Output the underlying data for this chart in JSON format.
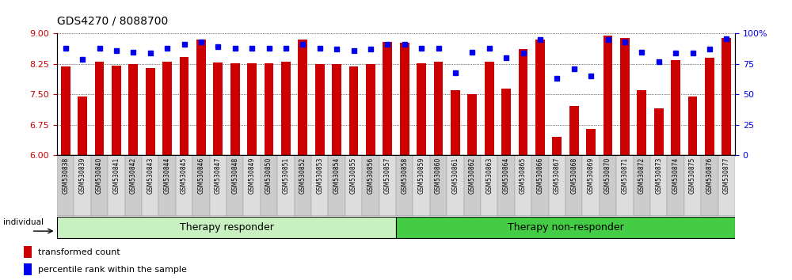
{
  "title": "GDS4270 / 8088700",
  "samples": [
    "GSM530838",
    "GSM530839",
    "GSM530840",
    "GSM530841",
    "GSM530842",
    "GSM530843",
    "GSM530844",
    "GSM530845",
    "GSM530846",
    "GSM530847",
    "GSM530848",
    "GSM530849",
    "GSM530850",
    "GSM530851",
    "GSM530852",
    "GSM530853",
    "GSM530854",
    "GSM530855",
    "GSM530856",
    "GSM530857",
    "GSM530858",
    "GSM530859",
    "GSM530860",
    "GSM530861",
    "GSM530862",
    "GSM530863",
    "GSM530864",
    "GSM530865",
    "GSM530866",
    "GSM530867",
    "GSM530868",
    "GSM530869",
    "GSM530870",
    "GSM530871",
    "GSM530872",
    "GSM530873",
    "GSM530874",
    "GSM530875",
    "GSM530876",
    "GSM530877"
  ],
  "bar_values": [
    8.19,
    7.45,
    8.3,
    8.22,
    8.24,
    8.16,
    8.3,
    8.42,
    8.85,
    8.28,
    8.27,
    8.27,
    8.26,
    8.3,
    8.85,
    8.25,
    8.24,
    8.19,
    8.25,
    8.8,
    8.78,
    8.26,
    8.3,
    7.6,
    7.5,
    8.3,
    7.65,
    8.62,
    8.85,
    6.45,
    7.22,
    6.65,
    8.95,
    8.9,
    7.6,
    7.15,
    8.35,
    7.45,
    8.4,
    8.9
  ],
  "percentile_values": [
    88,
    79,
    88,
    86,
    85,
    84,
    88,
    91,
    93,
    89,
    88,
    88,
    88,
    88,
    91,
    88,
    87,
    86,
    87,
    91,
    91,
    88,
    88,
    68,
    85,
    88,
    80,
    84,
    95,
    63,
    71,
    65,
    95,
    93,
    85,
    77,
    84,
    84,
    87,
    96
  ],
  "groups": [
    {
      "label": "Therapy responder",
      "start": 0,
      "end": 19,
      "color": "#c8f0c0"
    },
    {
      "label": "Therapy non-responder",
      "start": 20,
      "end": 39,
      "color": "#44cc44"
    }
  ],
  "n_responder": 20,
  "ylim_left": [
    6,
    9
  ],
  "ylim_right": [
    0,
    100
  ],
  "yticks_left": [
    6,
    6.75,
    7.5,
    8.25,
    9
  ],
  "yticks_right": [
    0,
    25,
    50,
    75,
    100
  ],
  "bar_color": "#CC0000",
  "dot_color": "#0000EE",
  "bar_width": 0.55,
  "left_axis_color": "#CC0000",
  "right_axis_color": "#0000EE",
  "group_label_color": "#000000",
  "tick_label_bg_even": "#cccccc",
  "tick_label_bg_odd": "#dddddd"
}
